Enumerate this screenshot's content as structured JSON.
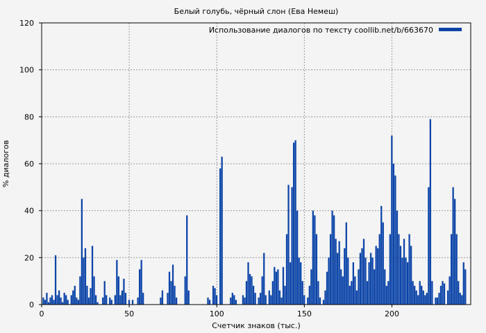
{
  "chart_data": {
    "type": "bar",
    "title": "Белый голубь, чёрный слон (Ева Немеш)",
    "xlabel": "Счетчик знаков (тыс.)",
    "ylabel": "% диалогов",
    "xlim": [
      0,
      245
    ],
    "ylim": [
      0,
      120
    ],
    "xticks": [
      0,
      50,
      100,
      150,
      200
    ],
    "yticks": [
      0,
      20,
      40,
      60,
      80,
      100,
      120
    ],
    "grid": true,
    "legend_position": "top-right",
    "color": "#0b44a8",
    "series": [
      {
        "name": "Использование диалогов по тексту coollib.net/b/663670",
        "points": [
          [
            1,
            3
          ],
          [
            2,
            2
          ],
          [
            3,
            5
          ],
          [
            4,
            1
          ],
          [
            5,
            3
          ],
          [
            6,
            4
          ],
          [
            7,
            2
          ],
          [
            8,
            21
          ],
          [
            9,
            4
          ],
          [
            10,
            6
          ],
          [
            11,
            3
          ],
          [
            12,
            1
          ],
          [
            13,
            5
          ],
          [
            14,
            4
          ],
          [
            15,
            2
          ],
          [
            17,
            4
          ],
          [
            18,
            6
          ],
          [
            19,
            8
          ],
          [
            20,
            3
          ],
          [
            21,
            2
          ],
          [
            22,
            12
          ],
          [
            23,
            45
          ],
          [
            24,
            20
          ],
          [
            25,
            24
          ],
          [
            26,
            8
          ],
          [
            27,
            3
          ],
          [
            28,
            7
          ],
          [
            29,
            25
          ],
          [
            30,
            12
          ],
          [
            31,
            4
          ],
          [
            32,
            1
          ],
          [
            35,
            3
          ],
          [
            36,
            10
          ],
          [
            37,
            4
          ],
          [
            39,
            3
          ],
          [
            40,
            2
          ],
          [
            42,
            4
          ],
          [
            43,
            19
          ],
          [
            44,
            12
          ],
          [
            45,
            4
          ],
          [
            46,
            6
          ],
          [
            47,
            11
          ],
          [
            48,
            5
          ],
          [
            50,
            2
          ],
          [
            52,
            2
          ],
          [
            55,
            3
          ],
          [
            56,
            15
          ],
          [
            57,
            19
          ],
          [
            58,
            5
          ],
          [
            68,
            3
          ],
          [
            69,
            6
          ],
          [
            72,
            5
          ],
          [
            73,
            14
          ],
          [
            74,
            10
          ],
          [
            75,
            17
          ],
          [
            76,
            8
          ],
          [
            77,
            3
          ],
          [
            82,
            12
          ],
          [
            83,
            38
          ],
          [
            84,
            6
          ],
          [
            95,
            3
          ],
          [
            96,
            2
          ],
          [
            98,
            8
          ],
          [
            99,
            7
          ],
          [
            100,
            4
          ],
          [
            102,
            58
          ],
          [
            103,
            63
          ],
          [
            108,
            3
          ],
          [
            109,
            5
          ],
          [
            110,
            4
          ],
          [
            111,
            2
          ],
          [
            115,
            4
          ],
          [
            116,
            3
          ],
          [
            117,
            10
          ],
          [
            118,
            18
          ],
          [
            119,
            13
          ],
          [
            120,
            12
          ],
          [
            121,
            8
          ],
          [
            122,
            5
          ],
          [
            124,
            3
          ],
          [
            125,
            5
          ],
          [
            126,
            12
          ],
          [
            127,
            22
          ],
          [
            128,
            4
          ],
          [
            130,
            6
          ],
          [
            131,
            4
          ],
          [
            132,
            10
          ],
          [
            133,
            16
          ],
          [
            134,
            14
          ],
          [
            135,
            15
          ],
          [
            136,
            6
          ],
          [
            137,
            3
          ],
          [
            138,
            16
          ],
          [
            139,
            8
          ],
          [
            140,
            30
          ],
          [
            141,
            51
          ],
          [
            142,
            18
          ],
          [
            143,
            50
          ],
          [
            144,
            69
          ],
          [
            145,
            70
          ],
          [
            146,
            40
          ],
          [
            147,
            20
          ],
          [
            148,
            18
          ],
          [
            149,
            10
          ],
          [
            150,
            4
          ],
          [
            152,
            3
          ],
          [
            153,
            8
          ],
          [
            154,
            15
          ],
          [
            155,
            40
          ],
          [
            156,
            38
          ],
          [
            157,
            30
          ],
          [
            158,
            10
          ],
          [
            159,
            3
          ],
          [
            161,
            2
          ],
          [
            162,
            6
          ],
          [
            163,
            14
          ],
          [
            164,
            20
          ],
          [
            165,
            30
          ],
          [
            166,
            40
          ],
          [
            167,
            38
          ],
          [
            168,
            28
          ],
          [
            169,
            22
          ],
          [
            170,
            27
          ],
          [
            171,
            15
          ],
          [
            172,
            12
          ],
          [
            173,
            24
          ],
          [
            174,
            35
          ],
          [
            175,
            20
          ],
          [
            176,
            8
          ],
          [
            177,
            10
          ],
          [
            178,
            18
          ],
          [
            179,
            12
          ],
          [
            180,
            6
          ],
          [
            181,
            15
          ],
          [
            182,
            22
          ],
          [
            183,
            24
          ],
          [
            184,
            28
          ],
          [
            185,
            20
          ],
          [
            186,
            10
          ],
          [
            187,
            18
          ],
          [
            188,
            22
          ],
          [
            189,
            20
          ],
          [
            190,
            15
          ],
          [
            191,
            25
          ],
          [
            192,
            24
          ],
          [
            193,
            30
          ],
          [
            194,
            42
          ],
          [
            195,
            35
          ],
          [
            196,
            15
          ],
          [
            197,
            8
          ],
          [
            198,
            10
          ],
          [
            199,
            30
          ],
          [
            200,
            72
          ],
          [
            201,
            60
          ],
          [
            202,
            55
          ],
          [
            203,
            40
          ],
          [
            204,
            30
          ],
          [
            205,
            25
          ],
          [
            206,
            20
          ],
          [
            207,
            28
          ],
          [
            208,
            20
          ],
          [
            209,
            18
          ],
          [
            210,
            30
          ],
          [
            211,
            25
          ],
          [
            212,
            10
          ],
          [
            213,
            8
          ],
          [
            214,
            6
          ],
          [
            215,
            4
          ],
          [
            216,
            10
          ],
          [
            217,
            8
          ],
          [
            218,
            6
          ],
          [
            219,
            4
          ],
          [
            220,
            5
          ],
          [
            221,
            50
          ],
          [
            222,
            79
          ],
          [
            223,
            10
          ],
          [
            225,
            3
          ],
          [
            226,
            3
          ],
          [
            227,
            5
          ],
          [
            228,
            8
          ],
          [
            229,
            10
          ],
          [
            230,
            9
          ],
          [
            232,
            6
          ],
          [
            233,
            12
          ],
          [
            234,
            30
          ],
          [
            235,
            50
          ],
          [
            236,
            45
          ],
          [
            237,
            30
          ],
          [
            238,
            10
          ],
          [
            239,
            5
          ],
          [
            240,
            4
          ],
          [
            241,
            18
          ],
          [
            242,
            15
          ]
        ]
      }
    ]
  }
}
